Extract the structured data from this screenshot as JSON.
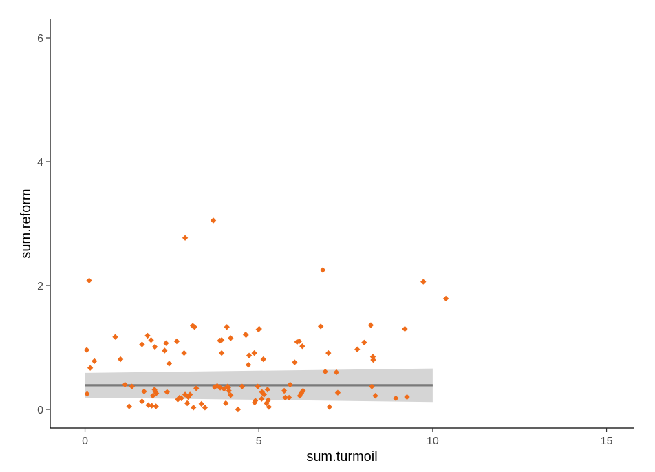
{
  "chart_data": {
    "type": "scatter",
    "xlabel": "sum.turmoil",
    "ylabel": "sum.reform",
    "xlim": [
      -1.0,
      15.8
    ],
    "ylim": [
      -0.3,
      6.3
    ],
    "x_ticks": [
      0,
      5,
      10,
      15
    ],
    "y_ticks": [
      0,
      2,
      4,
      6
    ],
    "x_tick_labels": [
      "0",
      "5",
      "10",
      "15"
    ],
    "y_tick_labels": [
      "0",
      "2",
      "4",
      "6"
    ],
    "grid": false,
    "legend": "none",
    "colors": {
      "points": "#ef6c1a",
      "fit_line": "#7a7a7a",
      "ribbon": "#d3d3d3",
      "axis": "#000000"
    },
    "points": [
      {
        "x": 0.05,
        "y": 0.96
      },
      {
        "x": 0.06,
        "y": 0.25
      },
      {
        "x": 0.12,
        "y": 2.08
      },
      {
        "x": 0.15,
        "y": 0.67
      },
      {
        "x": 0.27,
        "y": 0.78
      },
      {
        "x": 0.87,
        "y": 1.17
      },
      {
        "x": 1.02,
        "y": 0.81
      },
      {
        "x": 1.15,
        "y": 0.4
      },
      {
        "x": 1.27,
        "y": 0.05
      },
      {
        "x": 1.35,
        "y": 0.37
      },
      {
        "x": 1.64,
        "y": 0.13
      },
      {
        "x": 1.64,
        "y": 1.05
      },
      {
        "x": 1.7,
        "y": 0.29
      },
      {
        "x": 1.8,
        "y": 1.19
      },
      {
        "x": 1.82,
        "y": 0.07
      },
      {
        "x": 1.9,
        "y": 1.12
      },
      {
        "x": 1.92,
        "y": 0.06
      },
      {
        "x": 1.95,
        "y": 0.22
      },
      {
        "x": 2.0,
        "y": 0.32
      },
      {
        "x": 2.01,
        "y": 1.01
      },
      {
        "x": 2.02,
        "y": 0.29
      },
      {
        "x": 2.04,
        "y": 0.05
      },
      {
        "x": 2.05,
        "y": 0.26
      },
      {
        "x": 2.29,
        "y": 0.95
      },
      {
        "x": 2.33,
        "y": 1.07
      },
      {
        "x": 2.36,
        "y": 0.28
      },
      {
        "x": 2.42,
        "y": 0.74
      },
      {
        "x": 2.64,
        "y": 1.1
      },
      {
        "x": 2.67,
        "y": 0.16
      },
      {
        "x": 2.72,
        "y": 0.19
      },
      {
        "x": 2.77,
        "y": 0.18
      },
      {
        "x": 2.85,
        "y": 0.91
      },
      {
        "x": 2.88,
        "y": 2.77
      },
      {
        "x": 2.88,
        "y": 0.24
      },
      {
        "x": 2.94,
        "y": 0.1
      },
      {
        "x": 2.97,
        "y": 0.2
      },
      {
        "x": 3.02,
        "y": 0.24
      },
      {
        "x": 3.1,
        "y": 1.35
      },
      {
        "x": 3.12,
        "y": 0.03
      },
      {
        "x": 3.15,
        "y": 1.33
      },
      {
        "x": 3.2,
        "y": 0.34
      },
      {
        "x": 3.35,
        "y": 0.09
      },
      {
        "x": 3.45,
        "y": 0.03
      },
      {
        "x": 3.69,
        "y": 3.05
      },
      {
        "x": 3.73,
        "y": 0.36
      },
      {
        "x": 3.8,
        "y": 0.38
      },
      {
        "x": 3.88,
        "y": 1.11
      },
      {
        "x": 3.89,
        "y": 0.35
      },
      {
        "x": 3.93,
        "y": 1.12
      },
      {
        "x": 3.93,
        "y": 0.91
      },
      {
        "x": 4.0,
        "y": 0.33
      },
      {
        "x": 4.05,
        "y": 0.1
      },
      {
        "x": 4.08,
        "y": 1.33
      },
      {
        "x": 4.1,
        "y": 0.37
      },
      {
        "x": 4.12,
        "y": 0.35
      },
      {
        "x": 4.14,
        "y": 0.3
      },
      {
        "x": 4.19,
        "y": 0.23
      },
      {
        "x": 4.19,
        "y": 1.15
      },
      {
        "x": 4.4,
        "y": 0.0
      },
      {
        "x": 4.52,
        "y": 0.37
      },
      {
        "x": 4.62,
        "y": 1.21
      },
      {
        "x": 4.63,
        "y": 1.2
      },
      {
        "x": 4.7,
        "y": 0.72
      },
      {
        "x": 4.72,
        "y": 0.87
      },
      {
        "x": 4.87,
        "y": 0.91
      },
      {
        "x": 4.88,
        "y": 0.11
      },
      {
        "x": 4.9,
        "y": 0.14
      },
      {
        "x": 4.97,
        "y": 0.37
      },
      {
        "x": 4.99,
        "y": 1.29
      },
      {
        "x": 5.01,
        "y": 1.3
      },
      {
        "x": 5.08,
        "y": 0.17
      },
      {
        "x": 5.09,
        "y": 0.28
      },
      {
        "x": 5.13,
        "y": 0.81
      },
      {
        "x": 5.15,
        "y": 0.24
      },
      {
        "x": 5.22,
        "y": 0.1
      },
      {
        "x": 5.25,
        "y": 0.32
      },
      {
        "x": 5.27,
        "y": 0.15
      },
      {
        "x": 5.29,
        "y": 0.04
      },
      {
        "x": 5.73,
        "y": 0.3
      },
      {
        "x": 5.76,
        "y": 0.19
      },
      {
        "x": 5.87,
        "y": 0.19
      },
      {
        "x": 5.9,
        "y": 0.4
      },
      {
        "x": 6.03,
        "y": 0.76
      },
      {
        "x": 6.1,
        "y": 1.09
      },
      {
        "x": 6.16,
        "y": 1.1
      },
      {
        "x": 6.18,
        "y": 0.22
      },
      {
        "x": 6.22,
        "y": 0.26
      },
      {
        "x": 6.25,
        "y": 1.02
      },
      {
        "x": 6.27,
        "y": 0.3
      },
      {
        "x": 6.78,
        "y": 1.34
      },
      {
        "x": 6.84,
        "y": 2.25
      },
      {
        "x": 6.91,
        "y": 0.61
      },
      {
        "x": 7.03,
        "y": 0.04
      },
      {
        "x": 7.0,
        "y": 0.91
      },
      {
        "x": 7.23,
        "y": 0.6
      },
      {
        "x": 7.27,
        "y": 0.27
      },
      {
        "x": 7.83,
        "y": 0.97
      },
      {
        "x": 8.03,
        "y": 1.08
      },
      {
        "x": 8.22,
        "y": 1.36
      },
      {
        "x": 8.25,
        "y": 0.37
      },
      {
        "x": 8.28,
        "y": 0.85
      },
      {
        "x": 8.29,
        "y": 0.8
      },
      {
        "x": 8.35,
        "y": 0.22
      },
      {
        "x": 8.94,
        "y": 0.18
      },
      {
        "x": 9.2,
        "y": 1.3
      },
      {
        "x": 9.26,
        "y": 0.2
      },
      {
        "x": 9.73,
        "y": 2.06
      },
      {
        "x": 10.38,
        "y": 1.79
      }
    ],
    "fit": {
      "x": [
        0,
        10
      ],
      "y": [
        0.39,
        0.39
      ],
      "ymin": [
        0.19,
        0.12
      ],
      "ymax": [
        0.59,
        0.66
      ]
    }
  }
}
